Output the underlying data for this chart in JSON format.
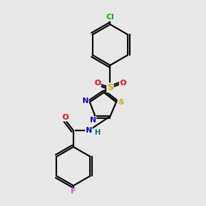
{
  "bg_color": "#e8e8e8",
  "atom_colors": {
    "C": "#000000",
    "N": "#0000ff",
    "O": "#ff0000",
    "S_ring": "#ccaa00",
    "S_sul": "#ccaa00",
    "Cl": "#00bb00",
    "F": "#ff44cc",
    "H": "#007070"
  },
  "bond_color": "#000000",
  "lw": 1.6
}
